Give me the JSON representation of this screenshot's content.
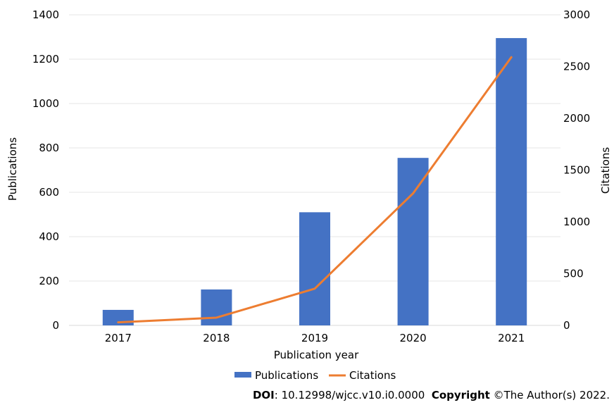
{
  "chart_data": {
    "type": "bar",
    "categories": [
      "2017",
      "2018",
      "2019",
      "2020",
      "2021"
    ],
    "series": [
      {
        "name": "Publications",
        "type": "bar",
        "axis": "left",
        "color": "#4472C4",
        "values": [
          70,
          162,
          510,
          755,
          1295
        ]
      },
      {
        "name": "Citations",
        "type": "line",
        "axis": "right",
        "color": "#ED7D31",
        "values": [
          30,
          75,
          355,
          1275,
          2590
        ]
      }
    ],
    "xlabel": "Publication year",
    "ylabel": "Publications",
    "ylabel_right": "Citations",
    "ylim": [
      0,
      1400
    ],
    "ylim_right": [
      0,
      3000
    ],
    "yticks": [
      0,
      200,
      400,
      600,
      800,
      1000,
      1200,
      1400
    ],
    "yticks_right": [
      0,
      500,
      1000,
      1500,
      2000,
      2500,
      3000
    ],
    "grid": true,
    "legend_position": "bottom"
  },
  "footer": {
    "doi_label": "DOI",
    "doi_value": ": 10.12998/wjcc.v10.i0.0000",
    "copyright_label": "Copyright",
    "copyright_value": "©The Author(s) 2022."
  }
}
